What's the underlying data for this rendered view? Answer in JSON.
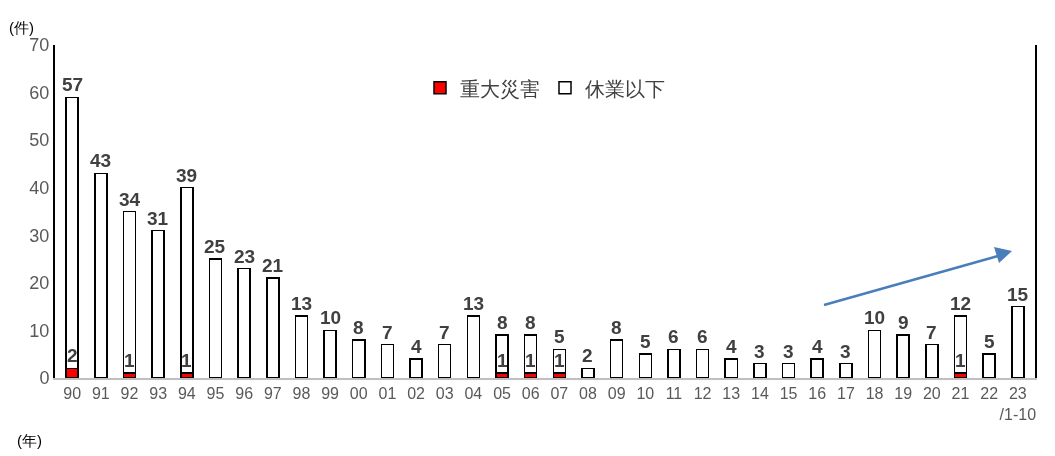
{
  "chart_data": {
    "type": "bar",
    "stacked": true,
    "ylabel": "(件)",
    "xlabel": "(年)",
    "categories": [
      "90",
      "91",
      "92",
      "93",
      "94",
      "95",
      "96",
      "97",
      "98",
      "99",
      "00",
      "01",
      "02",
      "03",
      "04",
      "05",
      "06",
      "07",
      "08",
      "09",
      "10",
      "11",
      "12",
      "13",
      "14",
      "15",
      "16",
      "17",
      "18",
      "19",
      "20",
      "21",
      "22",
      "23\n/1-10"
    ],
    "series": [
      {
        "name": "重大災害",
        "color": "#ff0000",
        "values": [
          2,
          0,
          1,
          0,
          1,
          0,
          0,
          0,
          0,
          0,
          0,
          0,
          0,
          0,
          0,
          1,
          1,
          1,
          0,
          0,
          0,
          0,
          0,
          0,
          0,
          0,
          0,
          0,
          0,
          0,
          0,
          1,
          0,
          0
        ],
        "value_labels": [
          "2",
          null,
          "1",
          null,
          "1",
          null,
          null,
          null,
          null,
          null,
          null,
          null,
          null,
          null,
          null,
          "1",
          "1",
          "1",
          null,
          null,
          null,
          null,
          null,
          null,
          null,
          null,
          null,
          null,
          null,
          null,
          null,
          "1",
          null,
          null
        ]
      },
      {
        "name": "休業以下",
        "color": "#ffffff",
        "values": [
          57,
          43,
          34,
          31,
          39,
          25,
          23,
          21,
          13,
          10,
          8,
          7,
          4,
          7,
          13,
          8,
          8,
          5,
          2,
          8,
          5,
          6,
          6,
          4,
          3,
          3,
          4,
          3,
          10,
          9,
          7,
          12,
          5,
          15
        ],
        "value_labels": [
          "57",
          "43",
          "34",
          "31",
          "39",
          "25",
          "23",
          "21",
          "13",
          "10",
          "8",
          "7",
          "4",
          "7",
          "13",
          "8",
          "8",
          "5",
          "2",
          "8",
          "5",
          "6",
          "6",
          "4",
          "3",
          "3",
          "4",
          "3",
          "10",
          "9",
          "7",
          "12",
          "5",
          "15"
        ]
      }
    ],
    "ylim": [
      0,
      70
    ],
    "yticks": [
      0,
      10,
      20,
      30,
      40,
      50,
      60,
      70
    ],
    "grid": false,
    "legend": "top"
  }
}
